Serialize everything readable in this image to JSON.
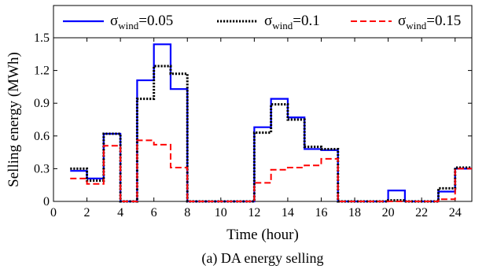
{
  "chart_data": {
    "type": "line",
    "line_shape": "step",
    "caption": "(a) DA energy selling",
    "xlabel": "Time (hour)",
    "ylabel": "Selling energy (MWh)",
    "xlim": [
      0,
      25
    ],
    "ylim": [
      0,
      1.5
    ],
    "x_ticks": [
      0,
      2,
      4,
      6,
      8,
      10,
      12,
      14,
      16,
      18,
      20,
      22,
      24
    ],
    "x_tick_labels": [
      "0",
      "2",
      "4",
      "6",
      "8",
      "10",
      "12",
      "14",
      "16",
      "18",
      "20",
      "22",
      "24"
    ],
    "y_ticks": [
      0,
      0.3,
      0.6,
      0.9,
      1.2,
      1.5
    ],
    "y_tick_labels": [
      "0",
      "0.3",
      "0.6",
      "0.9",
      "1.2",
      "1.5"
    ],
    "grid": false,
    "legend_position": "top",
    "x": [
      1,
      2,
      3,
      4,
      5,
      6,
      7,
      8,
      9,
      10,
      11,
      12,
      13,
      14,
      15,
      16,
      17,
      18,
      19,
      20,
      21,
      22,
      23,
      24
    ],
    "series": [
      {
        "name": "σ_wind=0.05",
        "legend_main": "σ",
        "legend_sub": "wind",
        "legend_value": "=0.05",
        "color": "#0000ff",
        "dash": "solid",
        "values": [
          0.28,
          0.21,
          0.62,
          0,
          1.11,
          1.44,
          1.03,
          0,
          0,
          0,
          0,
          0.68,
          0.94,
          0.77,
          0.48,
          0.47,
          0,
          0,
          0,
          0.1,
          0,
          0,
          0.09,
          0.3
        ]
      },
      {
        "name": "σ_wind=0.1",
        "legend_main": "σ",
        "legend_sub": "wind",
        "legend_value": "=0.1",
        "color": "#000000",
        "dash": "dotted",
        "values": [
          0.3,
          0.19,
          0.62,
          0,
          0.94,
          1.24,
          1.17,
          0,
          0,
          0,
          0,
          0.63,
          0.89,
          0.75,
          0.5,
          0.48,
          0,
          0,
          0,
          0.01,
          0,
          0,
          0.12,
          0.31
        ]
      },
      {
        "name": "σ_wind=0.15",
        "legend_main": "σ",
        "legend_sub": "wind",
        "legend_value": "=0.15",
        "color": "#ff0000",
        "dash": "dashed",
        "values": [
          0.21,
          0.16,
          0.51,
          0,
          0.56,
          0.52,
          0.31,
          0,
          0,
          0,
          0,
          0.17,
          0.29,
          0.31,
          0.33,
          0.39,
          0,
          0,
          0,
          0,
          0,
          0,
          0.02,
          0.3
        ]
      }
    ]
  }
}
